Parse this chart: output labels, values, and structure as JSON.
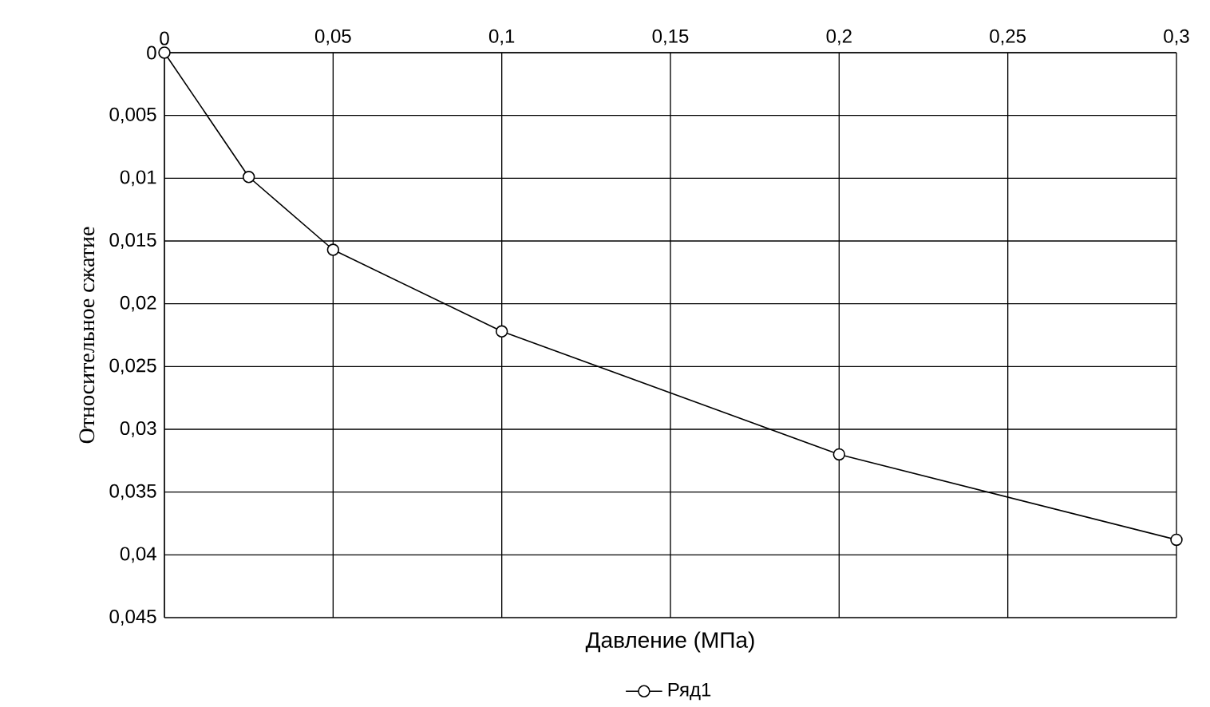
{
  "chart_data": {
    "type": "line",
    "xlabel": "Давление (МПа)",
    "ylabel": "Относительное сжатие",
    "x": [
      0,
      0.025,
      0.05,
      0.1,
      0.2,
      0.3
    ],
    "series": [
      {
        "name": "Ряд1",
        "color": "#000000",
        "values": [
          0,
          0.0099,
          0.0157,
          0.0222,
          0.032,
          0.0388
        ]
      }
    ],
    "xlim": [
      0,
      0.3
    ],
    "xticks": [
      0,
      {
        "value": 0.05,
        "label": "0,05"
      },
      {
        "value": 0.1,
        "label": "0,1"
      },
      {
        "value": 0.15,
        "label": "0,15"
      },
      {
        "value": 0.2,
        "label": "0,2"
      },
      {
        "value": 0.25,
        "label": "0,25"
      },
      {
        "value": 0.3,
        "label": "0,3"
      }
    ],
    "ylim": [
      0.045,
      0
    ],
    "yticks": [
      0,
      {
        "value": 0.005,
        "label": "0,005"
      },
      {
        "value": 0.01,
        "label": "0,01"
      },
      {
        "value": 0.015,
        "label": "0,015"
      },
      {
        "value": 0.02,
        "label": "0,02"
      },
      {
        "value": 0.025,
        "label": "0,025"
      },
      {
        "value": 0.03,
        "label": "0,03"
      },
      {
        "value": 0.035,
        "label": "0,035"
      },
      {
        "value": 0.04,
        "label": "0,04"
      },
      {
        "value": 0.045,
        "label": "0,045"
      }
    ],
    "grid": true,
    "legend": "bottom",
    "marker": "circle",
    "line_style": "solid"
  }
}
